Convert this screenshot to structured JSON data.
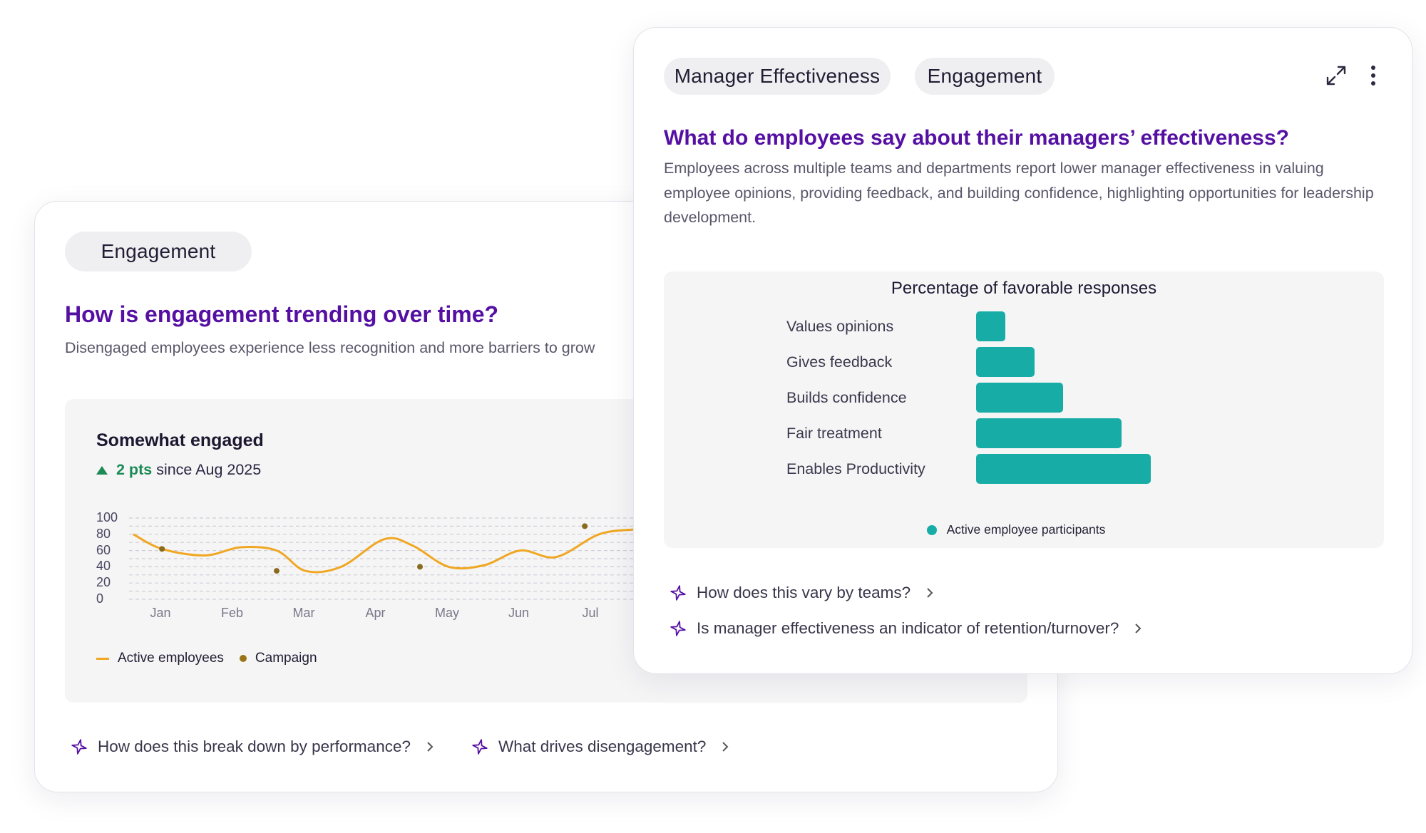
{
  "colors": {
    "accent_title": "#5510a3",
    "line_series": "#f0a722",
    "campaign_point": "#8a6a1c",
    "bar_fill": "#17ada6",
    "positive": "#1b8a55"
  },
  "card_engagement": {
    "chip_label": "Engagement",
    "title": "How is engagement trending over time?",
    "description": "Disengaged employees experience less recognition and more barriers to grow",
    "metric": {
      "label": "Somewhat engaged",
      "delta_value": "2 pts",
      "delta_suffix": "since Aug 2025",
      "trend_icon": "triangle-up-icon"
    },
    "legend": {
      "line_label": "Active employees",
      "point_label": "Campaign"
    },
    "suggestions": [
      {
        "icon": "sparkle-icon",
        "label": "How does this break down by performance?"
      },
      {
        "icon": "sparkle-icon",
        "label": "What drives disengagement?"
      }
    ]
  },
  "card_manager": {
    "chips": [
      "Manager Effectiveness",
      "Engagement"
    ],
    "icons": {
      "expand": "expand-icon",
      "menu": "more-vertical-icon"
    },
    "title": "What do employees say about their managers’ effectiveness?",
    "description": "Employees across multiple teams and departments report lower manager effectiveness in valuing employee opinions, providing feedback, and building confidence, highlighting opportunities for leadership development.",
    "suggestions": [
      {
        "icon": "sparkle-icon",
        "label": "How does this vary by teams?"
      },
      {
        "icon": "sparkle-icon",
        "label": "Is manager effectiveness an indicator of retention/turnover?"
      }
    ]
  },
  "chart_data": [
    {
      "type": "line",
      "title": "Somewhat engaged",
      "xlabel": "",
      "ylabel": "",
      "ylim": [
        0,
        100
      ],
      "yticks": [
        "100",
        "80",
        "60",
        "40",
        "20",
        "0"
      ],
      "categories": [
        "Jan",
        "Feb",
        "Mar",
        "Apr",
        "May",
        "Jun",
        "Jul"
      ],
      "series": [
        {
          "name": "Active employees",
          "x": [
            0.0,
            0.4,
            1.0,
            1.5,
            2.0,
            2.4,
            2.9,
            3.5,
            3.9,
            4.4,
            4.9,
            5.4,
            5.9,
            6.5,
            7.0
          ],
          "values": [
            80,
            62,
            54,
            64,
            60,
            35,
            40,
            74,
            66,
            40,
            42,
            60,
            52,
            80,
            86
          ]
        },
        {
          "name": "Campaign",
          "x": [
            0.4,
            2.0,
            4.0,
            6.3
          ],
          "values": [
            62,
            35,
            40,
            90
          ]
        }
      ],
      "grid": true,
      "legend": "bottom-left"
    },
    {
      "type": "bar",
      "orientation": "horizontal",
      "title": "Percentage of favorable responses",
      "categories": [
        "Values opinions",
        "Gives feedback",
        "Builds confidence",
        "Fair treatment",
        "Enables Productivity"
      ],
      "series": [
        {
          "name": "Active employee participants",
          "values": [
            10,
            20,
            30,
            50,
            60
          ]
        }
      ],
      "xlim": [
        0,
        100
      ],
      "legend": "bottom-center"
    }
  ]
}
